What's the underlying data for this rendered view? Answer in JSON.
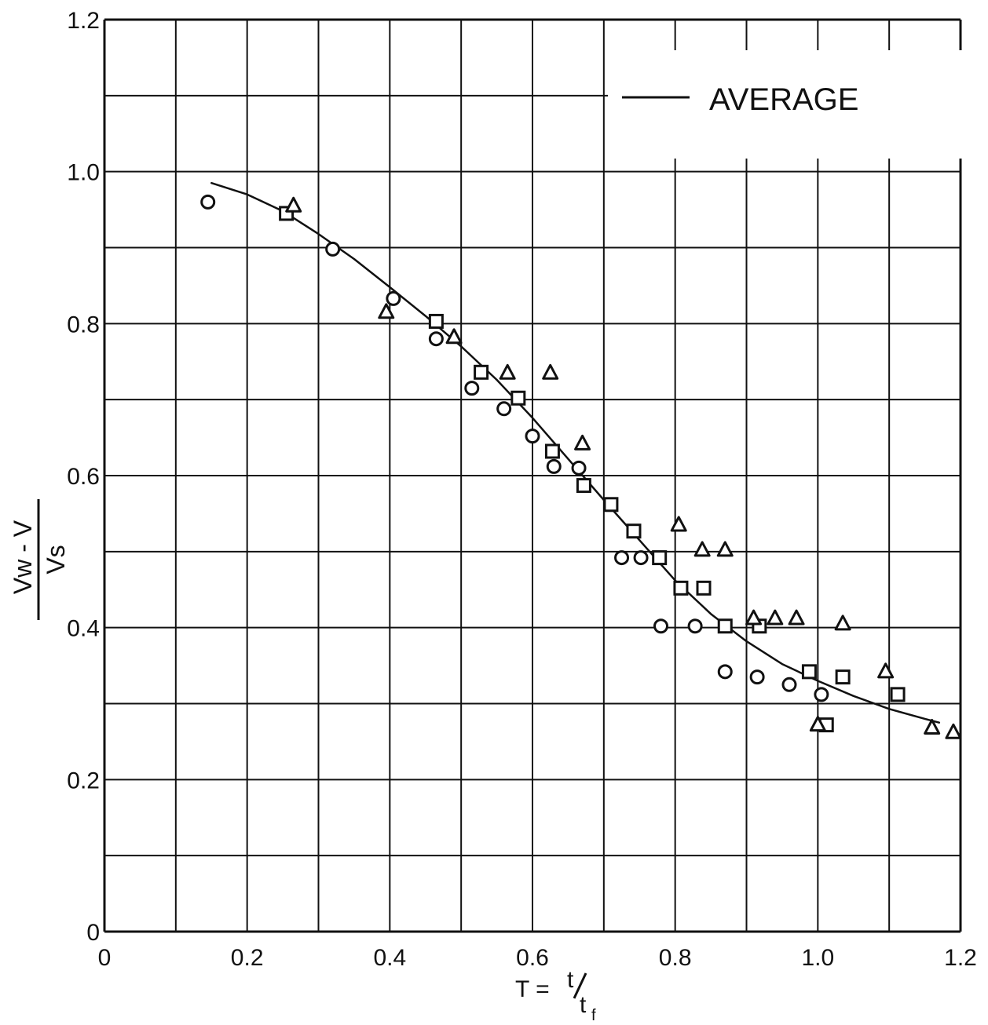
{
  "chart_data": {
    "type": "scatter",
    "xlim": [
      0,
      1.2
    ],
    "ylim": [
      0,
      1.2
    ],
    "x_tick_labels": [
      "0",
      "0.2",
      "0.4",
      "0.6",
      "0.8",
      "1.0",
      "1.2"
    ],
    "y_tick_labels": [
      "0",
      "0.2",
      "0.4",
      "0.6",
      "0.8",
      "1.0",
      "1.2"
    ],
    "x_ticks": [
      0,
      0.2,
      0.4,
      0.6,
      0.8,
      1.0,
      1.2
    ],
    "y_ticks": [
      0,
      0.2,
      0.4,
      0.6,
      0.8,
      1.0,
      1.2
    ],
    "grid": true,
    "grid_step": 0.1,
    "xlabel": {
      "lhs": "T =",
      "numerator": "t",
      "denominator": "t",
      "subscript": "f"
    },
    "ylabel": {
      "numerator": "Vw - V",
      "denominator": "Vs"
    },
    "legend": {
      "placement": "top-right",
      "entries": [
        {
          "label": "AVERAGE",
          "marker": "line"
        }
      ]
    },
    "series": [
      {
        "marker": "circle",
        "points": [
          [
            0.145,
            0.96
          ],
          [
            0.32,
            0.898
          ],
          [
            0.405,
            0.833
          ],
          [
            0.465,
            0.78
          ],
          [
            0.515,
            0.715
          ],
          [
            0.56,
            0.688
          ],
          [
            0.6,
            0.652
          ],
          [
            0.63,
            0.612
          ],
          [
            0.665,
            0.61
          ],
          [
            0.725,
            0.492
          ],
          [
            0.752,
            0.492
          ],
          [
            0.78,
            0.402
          ],
          [
            0.828,
            0.402
          ],
          [
            0.87,
            0.342
          ],
          [
            0.915,
            0.335
          ],
          [
            0.96,
            0.325
          ],
          [
            1.005,
            0.312
          ]
        ]
      },
      {
        "marker": "square",
        "points": [
          [
            0.255,
            0.945
          ],
          [
            0.465,
            0.803
          ],
          [
            0.528,
            0.736
          ],
          [
            0.58,
            0.702
          ],
          [
            0.628,
            0.632
          ],
          [
            0.672,
            0.587
          ],
          [
            0.71,
            0.562
          ],
          [
            0.742,
            0.527
          ],
          [
            0.778,
            0.492
          ],
          [
            0.808,
            0.452
          ],
          [
            0.84,
            0.452
          ],
          [
            0.87,
            0.402
          ],
          [
            0.918,
            0.402
          ],
          [
            0.988,
            0.342
          ],
          [
            1.012,
            0.272
          ],
          [
            1.035,
            0.335
          ],
          [
            1.112,
            0.312
          ]
        ]
      },
      {
        "marker": "triangle",
        "points": [
          [
            0.265,
            0.955
          ],
          [
            0.395,
            0.815
          ],
          [
            0.49,
            0.782
          ],
          [
            0.565,
            0.735
          ],
          [
            0.625,
            0.735
          ],
          [
            0.67,
            0.642
          ],
          [
            0.805,
            0.535
          ],
          [
            0.838,
            0.502
          ],
          [
            0.87,
            0.502
          ],
          [
            0.91,
            0.412
          ],
          [
            0.94,
            0.412
          ],
          [
            0.97,
            0.412
          ],
          [
            1.035,
            0.405
          ],
          [
            1.0,
            0.272
          ],
          [
            1.095,
            0.342
          ],
          [
            1.16,
            0.268
          ],
          [
            1.19,
            0.262
          ]
        ]
      },
      {
        "name": "AVERAGE",
        "marker": "line",
        "points": [
          [
            0.15,
            0.985
          ],
          [
            0.2,
            0.97
          ],
          [
            0.25,
            0.948
          ],
          [
            0.3,
            0.918
          ],
          [
            0.35,
            0.885
          ],
          [
            0.4,
            0.848
          ],
          [
            0.45,
            0.81
          ],
          [
            0.5,
            0.77
          ],
          [
            0.55,
            0.726
          ],
          [
            0.6,
            0.676
          ],
          [
            0.65,
            0.622
          ],
          [
            0.7,
            0.568
          ],
          [
            0.75,
            0.515
          ],
          [
            0.8,
            0.462
          ],
          [
            0.85,
            0.418
          ],
          [
            0.9,
            0.382
          ],
          [
            0.95,
            0.352
          ],
          [
            1.0,
            0.33
          ],
          [
            1.05,
            0.31
          ],
          [
            1.1,
            0.293
          ],
          [
            1.15,
            0.28
          ],
          [
            1.17,
            0.275
          ]
        ]
      }
    ]
  }
}
